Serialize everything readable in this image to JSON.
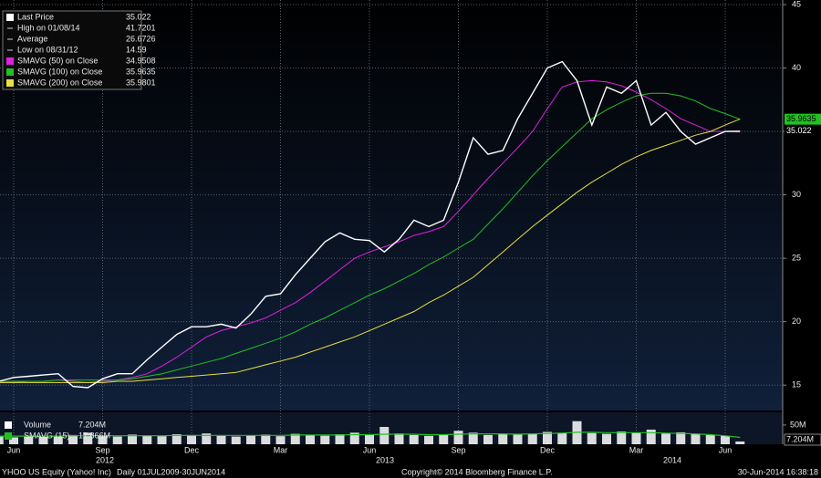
{
  "chart_data": {
    "type": "line",
    "footer_security": "YHOO US Equity (Yahoo! Inc)",
    "footer_range": "Daily 01JUL2009-30JUN2014",
    "copyright": "Copyright© 2014 Bloomberg Finance L.P.",
    "timestamp": "30-Jun-2014 16:38:18",
    "categories": [
      null,
      "Jun",
      null,
      null,
      null,
      null,
      null,
      "Sep",
      null,
      null,
      null,
      null,
      null,
      "Dec",
      null,
      null,
      null,
      null,
      null,
      "Mar",
      null,
      null,
      null,
      null,
      null,
      "Jun",
      null,
      null,
      null,
      null,
      null,
      "Sep",
      null,
      null,
      null,
      null,
      null,
      "Dec",
      null,
      null,
      null,
      null,
      null,
      "Mar",
      null,
      null,
      null,
      null,
      null,
      "Jun",
      null
    ],
    "year_labels": [
      "2012",
      "2013",
      "2014"
    ],
    "series": [
      {
        "name": "Last Price",
        "color": "#ffffff",
        "values": [
          15.3,
          15.6,
          15.7,
          15.8,
          15.9,
          14.9,
          14.8,
          15.5,
          15.9,
          15.9,
          17.0,
          18.0,
          19.0,
          19.6,
          19.6,
          19.8,
          19.5,
          20.6,
          22.0,
          22.2,
          23.7,
          25.0,
          26.3,
          27.0,
          26.5,
          26.4,
          25.5,
          26.5,
          28.0,
          27.5,
          28.0,
          31.0,
          34.5,
          33.2,
          33.5,
          36.0,
          38.0,
          40.0,
          40.5,
          39.0,
          35.5,
          38.5,
          38.0,
          39.0,
          35.5,
          36.5,
          35.0,
          34.0,
          34.5,
          35.0,
          35.022
        ]
      },
      {
        "name": "SMAVG (50) on Close",
        "color": "#e020e0",
        "values": [
          15.2,
          15.2,
          15.3,
          15.3,
          15.4,
          15.3,
          15.2,
          15.3,
          15.4,
          15.6,
          15.9,
          16.5,
          17.2,
          18.0,
          18.8,
          19.3,
          19.6,
          19.9,
          20.3,
          20.9,
          21.5,
          22.3,
          23.2,
          24.1,
          25.0,
          25.5,
          25.9,
          26.3,
          26.8,
          27.1,
          27.5,
          28.7,
          30.0,
          31.3,
          32.5,
          33.7,
          35.0,
          36.8,
          38.5,
          38.9,
          39.0,
          38.9,
          38.6,
          38.1,
          37.5,
          36.8,
          36.0,
          35.5,
          35.0,
          35.0,
          34.9508
        ]
      },
      {
        "name": "SMAVG (100) on Close",
        "color": "#22c022",
        "values": [
          15.3,
          15.3,
          15.3,
          15.3,
          15.4,
          15.4,
          15.4,
          15.4,
          15.4,
          15.5,
          15.7,
          15.9,
          16.2,
          16.5,
          16.8,
          17.1,
          17.5,
          17.9,
          18.3,
          18.7,
          19.2,
          19.8,
          20.3,
          20.9,
          21.5,
          22.1,
          22.6,
          23.2,
          23.8,
          24.5,
          25.1,
          25.8,
          26.5,
          27.7,
          28.9,
          30.2,
          31.5,
          32.7,
          33.8,
          34.9,
          36.0,
          36.7,
          37.3,
          37.8,
          38.0,
          38.0,
          37.8,
          37.4,
          36.8,
          36.4,
          35.9635
        ],
        "badge": true
      },
      {
        "name": "SMAVG (200) on Close",
        "color": "#e8e040",
        "values": [
          15.2,
          15.2,
          15.2,
          15.2,
          15.2,
          15.2,
          15.2,
          15.2,
          15.3,
          15.3,
          15.4,
          15.5,
          15.6,
          15.7,
          15.8,
          15.9,
          16.0,
          16.3,
          16.6,
          16.9,
          17.2,
          17.6,
          18.0,
          18.4,
          18.8,
          19.3,
          19.8,
          20.3,
          20.8,
          21.5,
          22.1,
          22.8,
          23.5,
          24.5,
          25.5,
          26.5,
          27.5,
          28.4,
          29.3,
          30.2,
          31.0,
          31.7,
          32.4,
          33.0,
          33.5,
          33.9,
          34.3,
          34.7,
          35.0,
          35.5,
          35.9801
        ]
      }
    ],
    "stats": [
      {
        "name": "High on 01/08/14",
        "value": 41.7201
      },
      {
        "name": "Average",
        "value": 26.6726
      },
      {
        "name": "Low on 08/31/12",
        "value": 14.59
      }
    ],
    "ylim": [
      13,
      45.36
    ],
    "yticks": [
      15,
      20,
      25,
      30,
      35,
      40,
      45
    ],
    "grid": true,
    "volume": {
      "ylim": [
        0,
        83
      ],
      "yticks": [
        {
          "value": 50,
          "label": "50M"
        }
      ],
      "series": [
        {
          "name": "Volume",
          "color": "#ffffff",
          "last_label": "7.204M",
          "values": [
            22,
            18,
            20,
            19,
            21,
            24,
            30,
            22,
            20,
            25,
            23,
            21,
            26,
            24,
            28,
            22,
            20,
            23,
            25,
            21,
            27,
            24,
            22,
            26,
            30,
            25,
            45,
            28,
            24,
            22,
            26,
            35,
            30,
            24,
            27,
            25,
            28,
            32,
            30,
            60,
            29,
            27,
            33,
            30,
            38,
            28,
            31,
            26,
            24,
            22,
            7.204
          ]
        },
        {
          "name": "SMAVG (15)",
          "color": "#22c022",
          "last_label": "17.866M",
          "values": [
            21,
            21,
            21,
            21,
            21,
            22,
            22,
            22,
            22,
            22,
            22,
            22,
            23,
            23,
            23,
            23,
            23,
            23,
            23,
            23,
            24,
            24,
            24,
            24,
            25,
            25,
            26,
            26,
            26,
            25,
            25,
            26,
            27,
            27,
            27,
            26,
            27,
            28,
            29,
            31,
            31,
            30,
            30,
            30,
            30,
            29,
            28,
            27,
            25,
            22,
            17.866
          ]
        }
      ]
    }
  }
}
